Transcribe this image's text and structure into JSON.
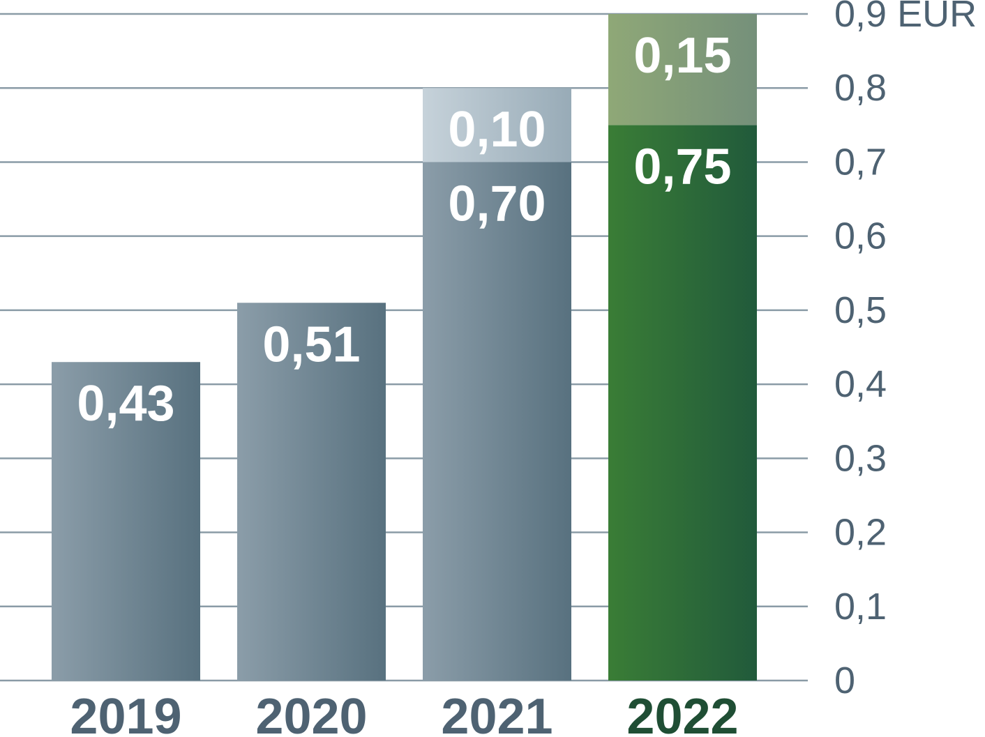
{
  "chart_data": {
    "type": "bar",
    "stacked": true,
    "categories": [
      "2019",
      "2020",
      "2021",
      "2022"
    ],
    "series": [
      {
        "values": [
          0.43,
          0.51,
          0.7,
          0.75
        ],
        "labels": [
          "0,43",
          "0,51",
          "0,70",
          "0,75"
        ]
      },
      {
        "values": [
          0,
          0,
          0.1,
          0.15
        ],
        "labels": [
          "",
          "",
          "0,10",
          "0,15"
        ]
      }
    ],
    "y_ticks": [
      {
        "value": 0,
        "label": "0"
      },
      {
        "value": 0.1,
        "label": "0,1"
      },
      {
        "value": 0.2,
        "label": "0,2"
      },
      {
        "value": 0.3,
        "label": "0,3"
      },
      {
        "value": 0.4,
        "label": "0,4"
      },
      {
        "value": 0.5,
        "label": "0,5"
      },
      {
        "value": 0.6,
        "label": "0,6"
      },
      {
        "value": 0.7,
        "label": "0,7"
      },
      {
        "value": 0.8,
        "label": "0,8"
      },
      {
        "value": 0.9,
        "label": "0,9 EUR"
      }
    ],
    "ylim": [
      0,
      0.9
    ],
    "y_axis_position": "right",
    "grid": true,
    "legend": "none",
    "highlight_category": "2022",
    "colors": {
      "base_light": "#8b9da9",
      "base_dark": "#58717f",
      "extra_light": "#c6d2da",
      "extra_dark": "#98abb7",
      "highlight_light": "#3a7d36",
      "highlight_dark": "#215a3b",
      "highlight_extra_light": "#8fa877",
      "highlight_extra_dark": "#75907a",
      "category_text": "#4e6272",
      "highlight_text": "#1f4e34",
      "grid": "#8a9ba6",
      "axis_text": "#4e6272"
    }
  }
}
